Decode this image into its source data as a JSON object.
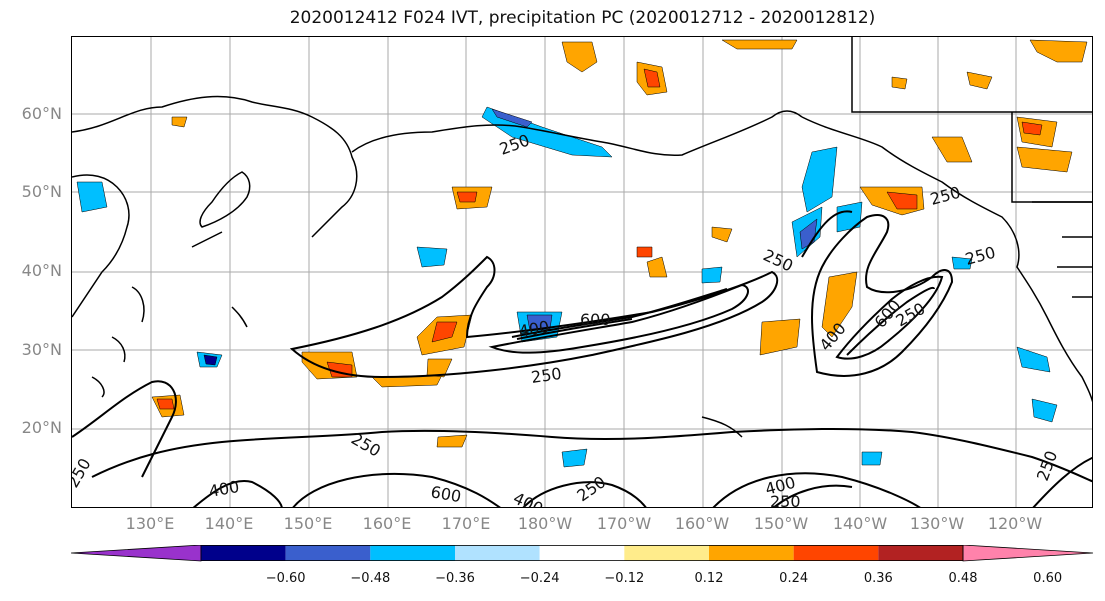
{
  "title": "2020012412 F024 IVT, precipitation PC (2020012712 - 2020012812)",
  "lat_labels": [
    "60°N",
    "50°N",
    "40°N",
    "30°N",
    "20°N"
  ],
  "lon_labels": [
    "130°E",
    "140°E",
    "150°E",
    "160°E",
    "170°E",
    "180°W",
    "170°W",
    "160°W",
    "150°W",
    "140°W",
    "130°W",
    "120°W"
  ],
  "contour_labels": [
    {
      "text": "250"
    },
    {
      "text": "250"
    },
    {
      "text": "250"
    },
    {
      "text": "250"
    },
    {
      "text": "400"
    },
    {
      "text": "600"
    },
    {
      "text": "250"
    },
    {
      "text": "400"
    },
    {
      "text": "600"
    },
    {
      "text": "250"
    },
    {
      "text": "250"
    },
    {
      "text": "400"
    },
    {
      "text": "600"
    },
    {
      "text": "400"
    },
    {
      "text": "250"
    },
    {
      "text": "250"
    },
    {
      "text": "400"
    },
    {
      "text": "250"
    },
    {
      "text": "250"
    }
  ],
  "colorbar": {
    "ticks": [
      "−0.60",
      "−0.48",
      "−0.36",
      "−0.24",
      "−0.12",
      "0.12",
      "0.24",
      "0.36",
      "0.48",
      "0.60"
    ],
    "colors": [
      "#9932cc",
      "#00008b",
      "#3a5fcd",
      "#00bfff",
      "#b0e2ff",
      "#ffffff",
      "#ffec8b",
      "#ffa500",
      "#ff4500",
      "#b22222",
      "#ff82ab"
    ]
  }
}
